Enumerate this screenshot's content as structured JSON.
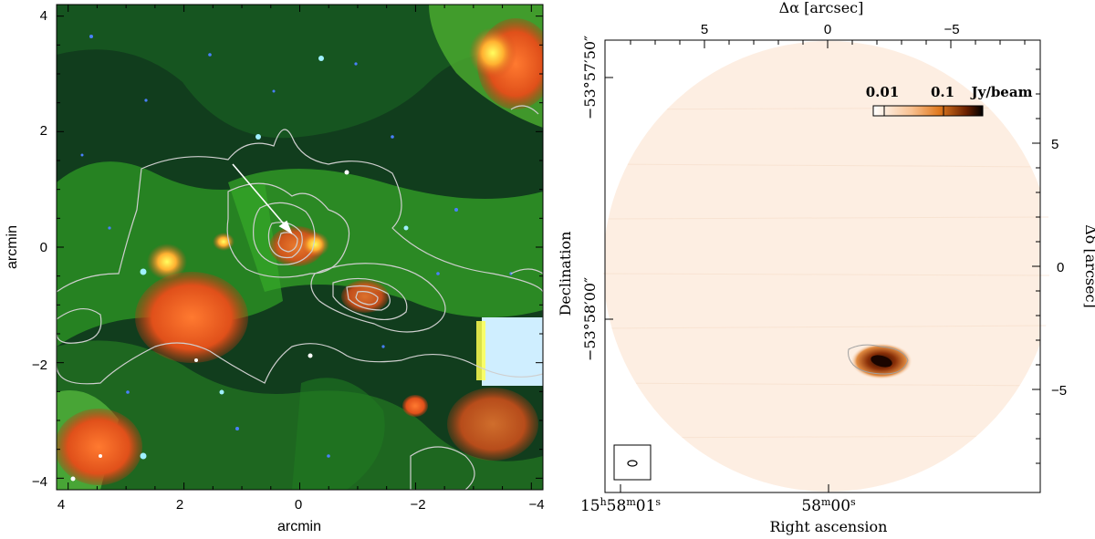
{
  "left_panel": {
    "xlabel": "arcmin",
    "ylabel": "arcmin",
    "x_ticks": [
      "4",
      "2",
      "0",
      "−2",
      "−4"
    ],
    "y_ticks": [
      "4",
      "2",
      "0",
      "−2",
      "−4"
    ],
    "xlim": [
      4.2,
      -4.2
    ],
    "ylim": [
      -4.2,
      4.2
    ],
    "colors": {
      "green": "#1e9a1e",
      "red": "#e0601a",
      "contour": "#c8c8c8"
    }
  },
  "right_panel": {
    "top_axis_label": "Δα [arcsec]",
    "top_ticks": [
      "5",
      "0",
      "−5"
    ],
    "right_axis_label": "Δδ [arcsec]",
    "right_ticks": [
      "5",
      "0",
      "−5"
    ],
    "xlabel": "Right ascension",
    "ylabel": "Declination",
    "dec_ticks": [
      "−53°57′50″",
      "−53°58′00″"
    ],
    "colorbar_ticks": [
      "0.01",
      "0.1"
    ],
    "colorbar_unit": "Jy/beam",
    "colors": {
      "map": "#fdeee2",
      "source": "#2a0c00",
      "cbar_mid": "#e07a20"
    }
  }
}
